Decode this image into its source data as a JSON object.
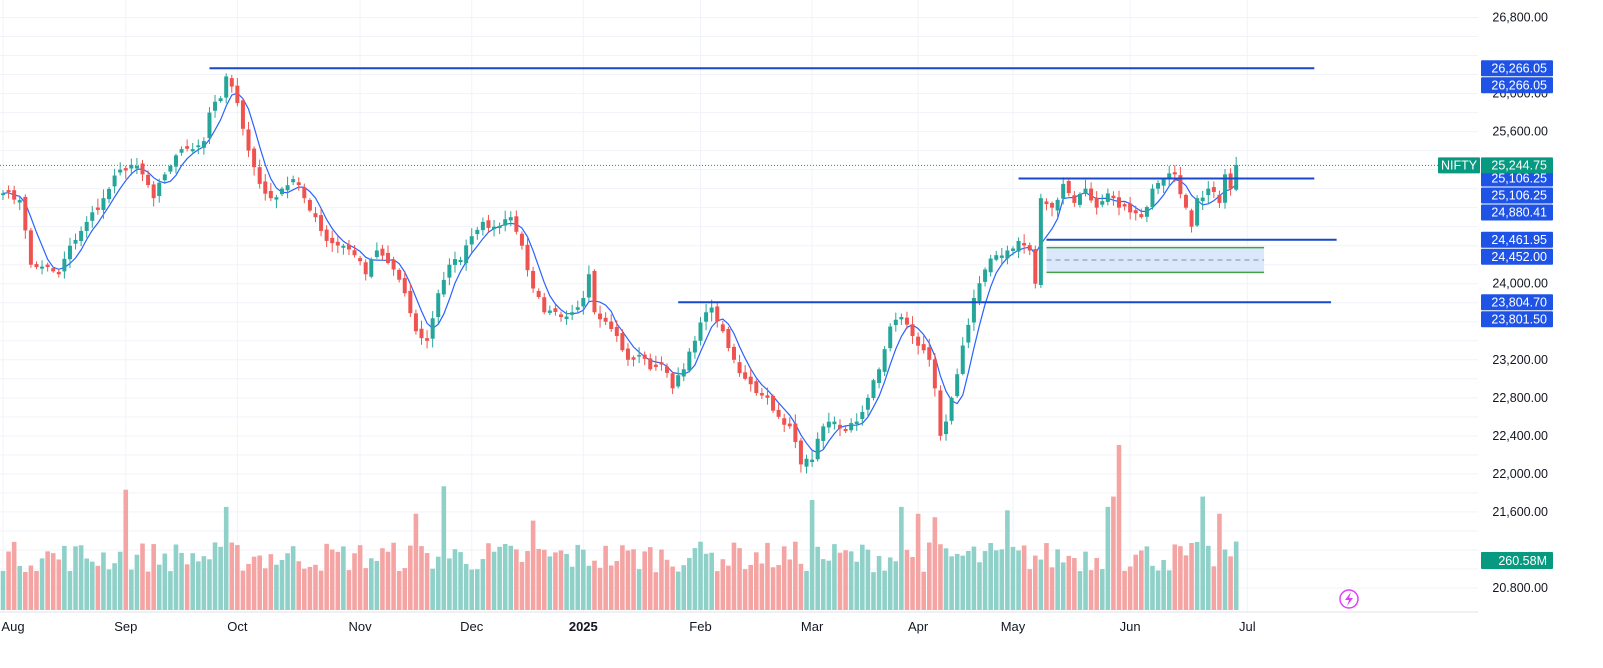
{
  "colors": {
    "up": "#26a69a",
    "down": "#ef5350",
    "vol_up": "#8fd1c9",
    "vol_down": "#f4a5a3",
    "ma": "#2962ff",
    "level": "#1848cc",
    "tag": "#1e53e5",
    "last_tag": "#089981",
    "grid": "#f0f3fa",
    "zone_fill": "#dbe8fb",
    "zone_border": "#43a047"
  },
  "chart_data": {
    "type": "candlestick",
    "symbol": "NIFTY",
    "last_price_label": "25,244.75",
    "volume_label": "260.58M",
    "y_range": [
      20600,
      26900
    ],
    "y_ticks": [
      "26,800.00",
      "26,000.00",
      "25,600.00",
      "24,000.00",
      "23,200.00",
      "22,800.00",
      "22,400.00",
      "22,000.00",
      "21,600.00",
      "20.800.00"
    ],
    "y_tick_values": [
      26800,
      26000,
      25600,
      24000,
      23200,
      22800,
      22400,
      22000,
      21600,
      20800
    ],
    "time_labels": [
      {
        "label": "Aug",
        "index": 0
      },
      {
        "label": "Sep",
        "index": 22
      },
      {
        "label": "Oct",
        "index": 42
      },
      {
        "label": "Nov",
        "index": 64
      },
      {
        "label": "Dec",
        "index": 84
      },
      {
        "label": "2025",
        "index": 104
      },
      {
        "label": "Feb",
        "index": 125
      },
      {
        "label": "Mar",
        "index": 145
      },
      {
        "label": "Apr",
        "index": 164
      },
      {
        "label": "May",
        "index": 181
      },
      {
        "label": "Jun",
        "index": 202
      },
      {
        "label": "Jul",
        "index": 223
      }
    ],
    "price_tags": [
      {
        "label": "26,266.05",
        "value": 26266.05
      },
      {
        "label": "26,266.05",
        "value": 26266.05
      },
      {
        "label": "25,106.25",
        "value": 25106.25
      },
      {
        "label": "25,106.25",
        "value": 25106.25
      },
      {
        "label": "24,880.41",
        "value": 24880.41
      },
      {
        "label": "24,461.95",
        "value": 24461.95
      },
      {
        "label": "24,452.00",
        "value": 24452.0
      },
      {
        "label": "23,804.70",
        "value": 23804.7
      },
      {
        "label": "23,801.50",
        "value": 23801.5
      }
    ],
    "horizontal_levels": [
      {
        "value": 26266.05,
        "from_index": 37,
        "to_index": 235
      },
      {
        "value": 25106.25,
        "from_index": 182,
        "to_index": 235
      },
      {
        "value": 24461.95,
        "from_index": 187,
        "to_index": 239
      },
      {
        "value": 23804.7,
        "from_index": 121,
        "to_index": 238
      }
    ],
    "zone": {
      "top": 24380,
      "bottom": 24120,
      "mid": 24250,
      "from_index": 187,
      "to_index": 226
    },
    "ma_period": 5,
    "waypoints": [
      {
        "i": 0,
        "c": 24950
      },
      {
        "i": 3,
        "c": 24880
      },
      {
        "i": 5,
        "c": 24200
      },
      {
        "i": 7,
        "c": 24180
      },
      {
        "i": 10,
        "c": 24100
      },
      {
        "i": 12,
        "c": 24400
      },
      {
        "i": 15,
        "c": 24650
      },
      {
        "i": 18,
        "c": 24900
      },
      {
        "i": 21,
        "c": 25200
      },
      {
        "i": 23,
        "c": 25250
      },
      {
        "i": 25,
        "c": 25150
      },
      {
        "i": 27,
        "c": 24900
      },
      {
        "i": 29,
        "c": 25150
      },
      {
        "i": 31,
        "c": 25350
      },
      {
        "i": 33,
        "c": 25420
      },
      {
        "i": 36,
        "c": 25500
      },
      {
        "i": 37,
        "c": 25800
      },
      {
        "i": 39,
        "c": 25950
      },
      {
        "i": 40,
        "c": 26180
      },
      {
        "i": 42,
        "c": 25900
      },
      {
        "i": 44,
        "c": 25400
      },
      {
        "i": 46,
        "c": 25050
      },
      {
        "i": 48,
        "c": 24900
      },
      {
        "i": 50,
        "c": 25000
      },
      {
        "i": 52,
        "c": 25100
      },
      {
        "i": 54,
        "c": 24900
      },
      {
        "i": 56,
        "c": 24700
      },
      {
        "i": 58,
        "c": 24450
      },
      {
        "i": 61,
        "c": 24400
      },
      {
        "i": 63,
        "c": 24300
      },
      {
        "i": 65,
        "c": 24100
      },
      {
        "i": 67,
        "c": 24350
      },
      {
        "i": 70,
        "c": 24150
      },
      {
        "i": 72,
        "c": 23900
      },
      {
        "i": 74,
        "c": 23500
      },
      {
        "i": 76,
        "c": 23400
      },
      {
        "i": 78,
        "c": 23900
      },
      {
        "i": 80,
        "c": 24200
      },
      {
        "i": 82,
        "c": 24250
      },
      {
        "i": 84,
        "c": 24500
      },
      {
        "i": 86,
        "c": 24650
      },
      {
        "i": 88,
        "c": 24600
      },
      {
        "i": 91,
        "c": 24700
      },
      {
        "i": 93,
        "c": 24400
      },
      {
        "i": 95,
        "c": 23950
      },
      {
        "i": 97,
        "c": 23700
      },
      {
        "i": 100,
        "c": 23650
      },
      {
        "i": 102,
        "c": 23700
      },
      {
        "i": 104,
        "c": 23850
      },
      {
        "i": 105,
        "c": 24100
      },
      {
        "i": 106,
        "c": 23700
      },
      {
        "i": 108,
        "c": 23600
      },
      {
        "i": 110,
        "c": 23450
      },
      {
        "i": 112,
        "c": 23200
      },
      {
        "i": 114,
        "c": 23250
      },
      {
        "i": 116,
        "c": 23100
      },
      {
        "i": 118,
        "c": 23150
      },
      {
        "i": 120,
        "c": 22900
      },
      {
        "i": 122,
        "c": 23100
      },
      {
        "i": 124,
        "c": 23400
      },
      {
        "i": 126,
        "c": 23700
      },
      {
        "i": 127,
        "c": 23750
      },
      {
        "i": 129,
        "c": 23500
      },
      {
        "i": 131,
        "c": 23200
      },
      {
        "i": 133,
        "c": 23000
      },
      {
        "i": 135,
        "c": 22850
      },
      {
        "i": 137,
        "c": 22800
      },
      {
        "i": 139,
        "c": 22600
      },
      {
        "i": 141,
        "c": 22500
      },
      {
        "i": 143,
        "c": 22100
      },
      {
        "i": 145,
        "c": 22150
      },
      {
        "i": 147,
        "c": 22500
      },
      {
        "i": 149,
        "c": 22550
      },
      {
        "i": 151,
        "c": 22450
      },
      {
        "i": 153,
        "c": 22550
      },
      {
        "i": 155,
        "c": 22800
      },
      {
        "i": 157,
        "c": 23100
      },
      {
        "i": 159,
        "c": 23550
      },
      {
        "i": 161,
        "c": 23650
      },
      {
        "i": 163,
        "c": 23450
      },
      {
        "i": 165,
        "c": 23300
      },
      {
        "i": 166,
        "c": 23200
      },
      {
        "i": 167,
        "c": 22900
      },
      {
        "i": 168,
        "c": 22400
      },
      {
        "i": 169,
        "c": 22550
      },
      {
        "i": 170,
        "c": 22800
      },
      {
        "i": 172,
        "c": 23350
      },
      {
        "i": 174,
        "c": 23850
      },
      {
        "i": 176,
        "c": 24150
      },
      {
        "i": 178,
        "c": 24300
      },
      {
        "i": 180,
        "c": 24350
      },
      {
        "i": 182,
        "c": 24450
      },
      {
        "i": 184,
        "c": 24350
      },
      {
        "i": 185,
        "c": 24000
      },
      {
        "i": 186,
        "c": 24900
      },
      {
        "i": 188,
        "c": 24800
      },
      {
        "i": 190,
        "c": 25050
      },
      {
        "i": 192,
        "c": 24850
      },
      {
        "i": 194,
        "c": 25000
      },
      {
        "i": 196,
        "c": 24800
      },
      {
        "i": 198,
        "c": 24950
      },
      {
        "i": 200,
        "c": 24800
      },
      {
        "i": 202,
        "c": 24750
      },
      {
        "i": 204,
        "c": 24700
      },
      {
        "i": 206,
        "c": 25000
      },
      {
        "i": 208,
        "c": 25100
      },
      {
        "i": 210,
        "c": 25150
      },
      {
        "i": 212,
        "c": 24800
      },
      {
        "i": 213,
        "c": 24600
      },
      {
        "i": 214,
        "c": 24900
      },
      {
        "i": 216,
        "c": 25000
      },
      {
        "i": 218,
        "c": 24850
      },
      {
        "i": 219,
        "c": 25150
      },
      {
        "i": 220,
        "c": 25000
      },
      {
        "i": 221,
        "c": 25250
      }
    ],
    "volume_spikes": [
      {
        "i": 22,
        "v": 350
      },
      {
        "i": 40,
        "v": 300
      },
      {
        "i": 74,
        "v": 280
      },
      {
        "i": 79,
        "v": 360
      },
      {
        "i": 95,
        "v": 260
      },
      {
        "i": 124,
        "v": 180
      },
      {
        "i": 145,
        "v": 320
      },
      {
        "i": 161,
        "v": 300
      },
      {
        "i": 164,
        "v": 280
      },
      {
        "i": 167,
        "v": 270
      },
      {
        "i": 180,
        "v": 290
      },
      {
        "i": 198,
        "v": 300
      },
      {
        "i": 199,
        "v": 330
      },
      {
        "i": 200,
        "v": 480
      },
      {
        "i": 215,
        "v": 330
      },
      {
        "i": 218,
        "v": 280
      },
      {
        "i": 132,
        "v": 180
      }
    ]
  }
}
